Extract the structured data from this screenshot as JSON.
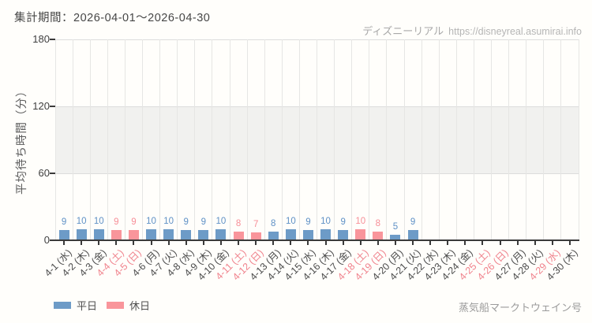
{
  "header": {
    "period_label": "集計期間：2026-04-01～2026-04-30",
    "site_name": "ディズニーリアル",
    "site_url": "https://disneyreal.asumirai.info"
  },
  "legend": {
    "weekday_label": "平日",
    "holiday_label": "休日"
  },
  "footer": {
    "attraction_name": "蒸気船マークトウェイン号"
  },
  "colors": {
    "weekday_bar": "#6d9bc7",
    "holiday_bar": "#f9959b",
    "weekday_value_text": "#5f91c6",
    "holiday_value_text": "#f78f98",
    "weekday_tick_text": "#4c4c4c",
    "holiday_tick_text": "#f0838d"
  },
  "chart_data": {
    "type": "bar",
    "title": "",
    "xlabel": "",
    "ylabel": "平均待ち時間（分）",
    "ylim": [
      0,
      180
    ],
    "yticks": [
      0,
      60,
      120,
      180
    ],
    "shaded_band": [
      60,
      120
    ],
    "grid": true,
    "legend_position": "bottom-left",
    "categories": [
      "4-1 (水)",
      "4-2 (木)",
      "4-3 (金)",
      "4-4 (土)",
      "4-5 (日)",
      "4-6 (月)",
      "4-7 (火)",
      "4-8 (水)",
      "4-9 (木)",
      "4-10 (金)",
      "4-11 (土)",
      "4-12 (日)",
      "4-13 (月)",
      "4-14 (火)",
      "4-15 (水)",
      "4-16 (木)",
      "4-17 (金)",
      "4-18 (土)",
      "4-19 (日)",
      "4-20 (月)",
      "4-21 (火)",
      "4-22 (水)",
      "4-23 (木)",
      "4-24 (金)",
      "4-25 (土)",
      "4-26 (日)",
      "4-27 (月)",
      "4-28 (火)",
      "4-29 (水)",
      "4-30 (木)"
    ],
    "values": [
      9,
      10,
      10,
      9,
      9,
      10,
      10,
      9,
      9,
      10,
      8,
      7,
      8,
      10,
      9,
      10,
      9,
      10,
      8,
      5,
      9,
      null,
      null,
      null,
      null,
      null,
      null,
      null,
      null,
      null
    ],
    "day_types": [
      "weekday",
      "weekday",
      "weekday",
      "holiday",
      "holiday",
      "weekday",
      "weekday",
      "weekday",
      "weekday",
      "weekday",
      "holiday",
      "holiday",
      "weekday",
      "weekday",
      "weekday",
      "weekday",
      "weekday",
      "holiday",
      "holiday",
      "weekday",
      "weekday",
      "weekday",
      "weekday",
      "weekday",
      "holiday",
      "holiday",
      "weekday",
      "weekday",
      "holiday",
      "weekday"
    ]
  }
}
